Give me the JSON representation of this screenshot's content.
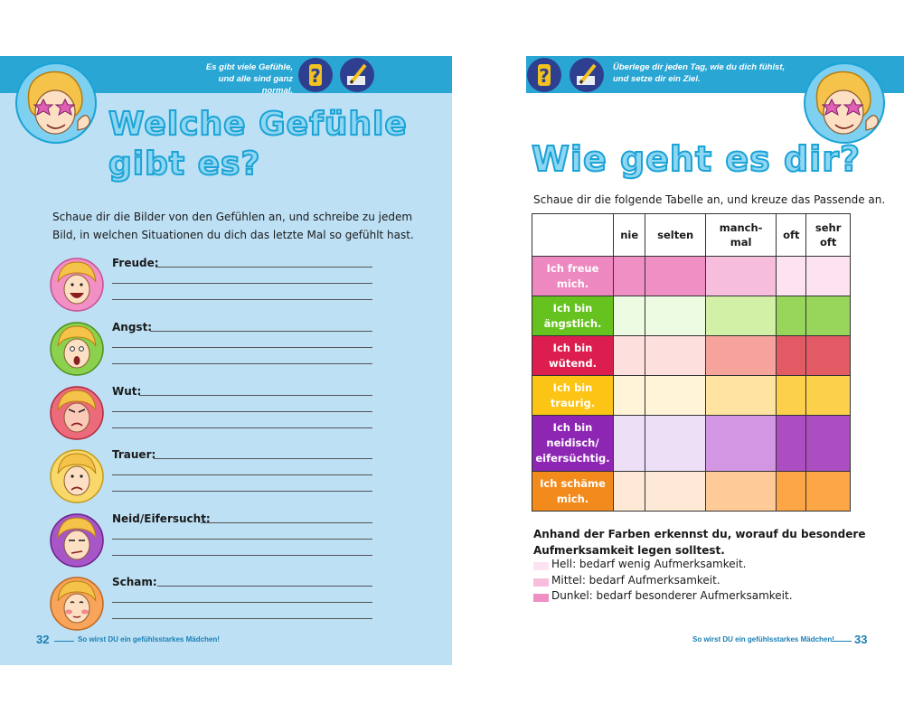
{
  "left_page": {
    "tip": {
      "line1": "Es gibt viele Gefühle,",
      "line2": "und alle sind ganz normal."
    },
    "title": {
      "line1": "Welche Gefühle",
      "line2": "gibt es?"
    },
    "intro": {
      "line1": "Schaue dir die Bilder von den Gefühlen an, und schreibe zu jedem",
      "line2": "Bild, in welchen Situationen du dich das letzte Mal so gefühlt hast."
    },
    "emotions": [
      {
        "label": "Freude:",
        "color": "#f28fc4"
      },
      {
        "label": "Angst:",
        "color": "#8cd14d"
      },
      {
        "label": "Wut:",
        "color": "#ec6a7a"
      },
      {
        "label": "Trauer:",
        "color": "#f9d86a"
      },
      {
        "label": "Neid/Eifersucht:",
        "color": "#a855c8"
      },
      {
        "label": "Scham:",
        "color": "#f8a45a"
      }
    ],
    "page_number": "32",
    "footer": "So wirst DU ein gefühlsstarkes Mädchen!"
  },
  "right_page": {
    "tip": {
      "line1": "Überlege dir jeden Tag, wie du dich fühlst,",
      "line2": "und setze dir ein Ziel."
    },
    "title": "Wie geht es dir?",
    "intro": "Schaue dir die folgende Tabelle an, und kreuze das Passende an.",
    "table": {
      "columns": [
        {
          "line1": "nie",
          "line2": ""
        },
        {
          "line1": "selten",
          "line2": ""
        },
        {
          "line1": "manch-",
          "line2": "mal"
        },
        {
          "line1": "oft",
          "line2": ""
        },
        {
          "line1": "sehr",
          "line2": "oft"
        }
      ],
      "rows": [
        {
          "lines": [
            "Ich freue",
            "mich."
          ],
          "head_color": "#ee88c0",
          "cells": [
            "#f08fc3",
            "#f08fc3",
            "#f7bddd",
            "#fde3f1",
            "#fde3f1"
          ]
        },
        {
          "lines": [
            "Ich bin",
            "ängstlich."
          ],
          "head_color": "#66c21f",
          "cells": [
            "#eefbe3",
            "#eefbe3",
            "#d2f0a6",
            "#97d65a",
            "#97d65a"
          ]
        },
        {
          "lines": [
            "Ich bin",
            "wütend."
          ],
          "head_color": "#dc1e4e",
          "cells": [
            "#fde0de",
            "#fde0de",
            "#f6a39c",
            "#e25a64",
            "#e25a64"
          ]
        },
        {
          "lines": [
            "Ich bin",
            "traurig."
          ],
          "head_color": "#fcc414",
          "cells": [
            "#fff3d8",
            "#fff3d8",
            "#ffe3a0",
            "#fdd04c",
            "#fdd04c"
          ]
        },
        {
          "lines": [
            "Ich bin",
            "neidisch/",
            "eifersüchtig."
          ],
          "head_color": "#8e26b4",
          "cells": [
            "#ede0f6",
            "#ede0f6",
            "#d396e2",
            "#ac4ec1",
            "#ac4ec1"
          ]
        },
        {
          "lines": [
            "Ich schäme",
            "mich."
          ],
          "head_color": "#f28b1c",
          "cells": [
            "#fde9d6",
            "#fde9d6",
            "#fecb98",
            "#fca646",
            "#fca646"
          ]
        }
      ]
    },
    "legend": {
      "heading_line1": "Anhand der Farben erkennst du, worauf du besondere",
      "heading_line2": "Aufmerksamkeit legen solltest.",
      "items": [
        {
          "text": "Hell: bedarf wenig Aufmerksamkeit.",
          "color": "#fde3f1"
        },
        {
          "text": "Mittel: bedarf Aufmerksamkeit.",
          "color": "#f7bddd"
        },
        {
          "text": "Dunkel: bedarf besonderer Aufmerksamkeit.",
          "color": "#f08fc3"
        }
      ]
    },
    "page_number": "33",
    "footer": "So wirst DU ein gefühlsstarkes Mädchen!"
  },
  "icons": {
    "question": "?",
    "mascot": "girl-with-star-glasses-thumbs-up",
    "pencil": "pencil-icon"
  },
  "colors": {
    "teal": "#29a6d4",
    "left_bg": "#bde0f5",
    "title_fill": "#8fd6f2",
    "title_stroke": "#1aa3d6"
  }
}
